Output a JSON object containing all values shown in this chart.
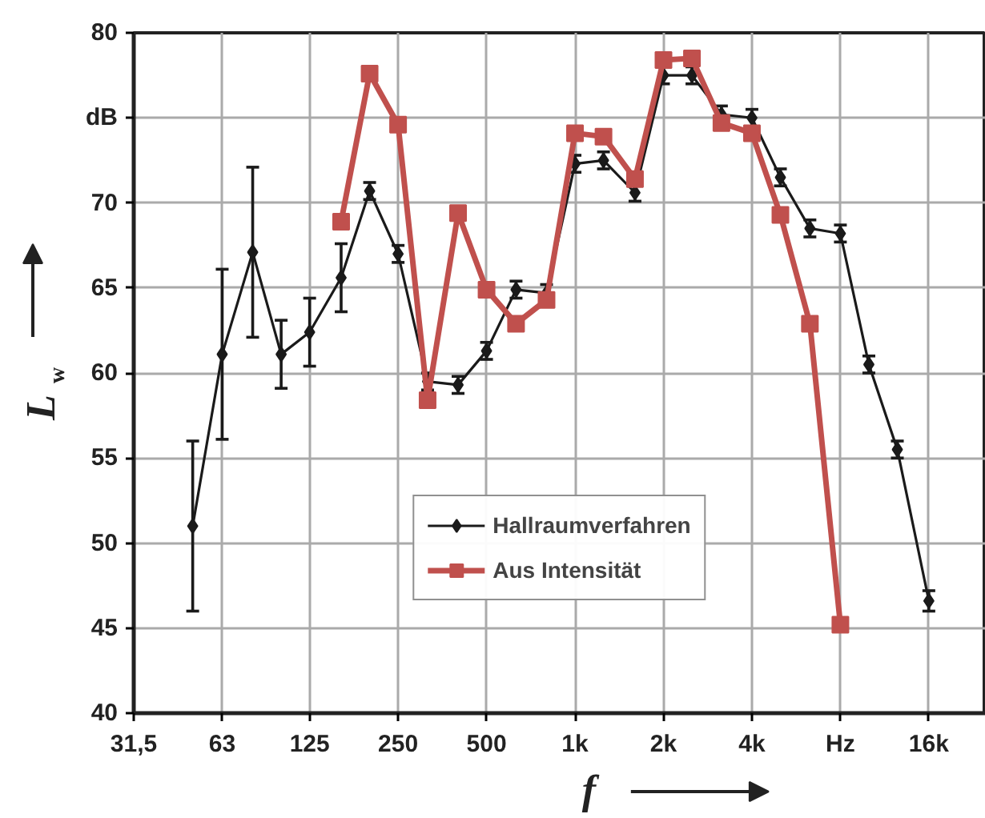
{
  "chart_data": {
    "type": "line",
    "xlabel": "f",
    "ylabel": "L$_{w}$",
    "x": [
      50,
      63,
      80,
      100,
      125,
      160,
      200,
      250,
      315,
      400,
      500,
      630,
      800,
      1000,
      1250,
      1600,
      2000,
      2500,
      3150,
      4000,
      5000,
      6300,
      8000,
      10000,
      12500,
      16000
    ],
    "series": [
      {
        "name": "Hallraumverfahren",
        "color": "#1a1a1a",
        "marker": "diamond",
        "values": [
          51.0,
          61.1,
          67.1,
          61.1,
          62.4,
          65.6,
          70.7,
          67.0,
          59.5,
          59.3,
          61.3,
          64.9,
          64.7,
          72.3,
          72.5,
          70.6,
          77.5,
          77.5,
          75.2,
          75.0,
          71.5,
          68.5,
          68.2,
          60.5,
          55.5,
          46.6
        ],
        "errors": [
          5,
          5,
          5,
          2,
          2,
          2,
          0.5,
          0.5,
          0.5,
          0.5,
          0.5,
          0.5,
          0.5,
          0.5,
          0.5,
          0.5,
          0.5,
          0.5,
          0.5,
          0.5,
          0.5,
          0.5,
          0.5,
          0.5,
          0.5,
          0.6
        ]
      },
      {
        "name": "Aus Intensität",
        "color": "#c0504d",
        "marker": "square",
        "values": [
          null,
          null,
          null,
          null,
          null,
          68.9,
          77.6,
          74.6,
          58.4,
          69.4,
          64.9,
          62.9,
          64.3,
          74.1,
          73.9,
          71.4,
          78.4,
          78.5,
          74.7,
          74.1,
          69.3,
          62.9,
          45.2,
          null,
          null,
          null
        ]
      }
    ],
    "log": "x",
    "xlim": [
      31.5,
      25000
    ],
    "xticks": [
      {
        "value": 31.5,
        "label": "31,5"
      },
      63,
      125,
      250,
      500,
      {
        "value": 1000,
        "label": "1k"
      },
      {
        "value": 2000,
        "label": "2k"
      },
      {
        "value": 4000,
        "label": "4k"
      },
      {
        "value": 8000,
        "label": "Hz"
      },
      {
        "value": 16000,
        "label": "16k"
      }
    ],
    "ylim": [
      40,
      80
    ],
    "yticks": [
      40,
      45,
      50,
      55,
      60,
      65,
      70,
      {
        "value": 75,
        "label": "dB"
      },
      80
    ],
    "grid": true,
    "legend": "bottom",
    "line_style": "solid"
  }
}
